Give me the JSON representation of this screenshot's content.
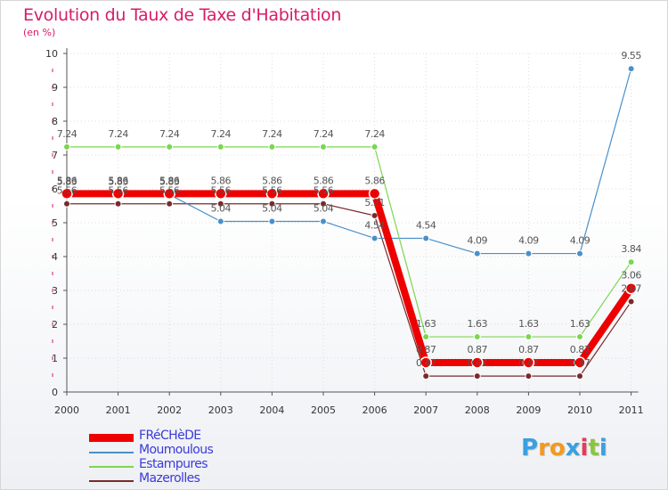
{
  "header": {
    "title": "Evolution du Taux de Taxe d'Habitation",
    "subtitle": "(en %)"
  },
  "logo": {
    "letters": [
      "P",
      "r",
      "o",
      "x",
      "i",
      "t",
      "i"
    ],
    "colors": [
      "#3aa0e0",
      "#f29a1e",
      "#f29a1e",
      "#3aa0e0",
      "#e83a5a",
      "#8ac53e",
      "#3aa0e0"
    ]
  },
  "colors": {
    "title": "#d81b6a",
    "axis": "#555555",
    "grid_dots": "#d81b6a",
    "legend_text": "#3b3bd8"
  },
  "chart_data": {
    "type": "line",
    "title": "Evolution du Taux de Taxe d'Habitation",
    "ylabel": "(en %)",
    "x": [
      "2000",
      "2001",
      "2002",
      "2003",
      "2004",
      "2005",
      "2006",
      "2007",
      "2008",
      "2009",
      "2010",
      "2011"
    ],
    "ylim": [
      0,
      10
    ],
    "yticks": [
      "0",
      "1",
      "2",
      "3",
      "4",
      "5",
      "6",
      "7",
      "8",
      "9",
      "10"
    ],
    "legend_position": "bottom-left",
    "series": [
      {
        "name": "FRéCHèDE",
        "color": "#ee0000",
        "values": [
          5.86,
          5.86,
          5.86,
          5.86,
          5.86,
          5.86,
          5.86,
          0.87,
          0.87,
          0.87,
          0.87,
          3.06
        ],
        "labels": [
          "5.86",
          "5.86",
          "5.86",
          "5.86",
          "5.86",
          "5.86",
          "5.86",
          "0.87",
          "0.87",
          "0.87",
          "0.87",
          "3.06"
        ]
      },
      {
        "name": "Moumoulous",
        "color": "#4a90c8",
        "values": [
          5.83,
          5.83,
          5.83,
          5.04,
          5.04,
          5.04,
          4.54,
          4.54,
          4.09,
          4.09,
          4.09,
          9.55
        ],
        "labels": [
          "5.83",
          "5.83",
          "5.83",
          "5.04",
          "5.04",
          "5.04",
          "4.54",
          "4.54",
          "4.09",
          "4.09",
          "4.09",
          "9.55"
        ]
      },
      {
        "name": "Estampures",
        "color": "#7cd650",
        "values": [
          7.24,
          7.24,
          7.24,
          7.24,
          7.24,
          7.24,
          7.24,
          1.63,
          1.63,
          1.63,
          1.63,
          3.84
        ],
        "labels": [
          "7.24",
          "7.24",
          "7.24",
          "7.24",
          "7.24",
          "7.24",
          "7.24",
          "1.63",
          "1.63",
          "1.63",
          "1.63",
          "3.84"
        ]
      },
      {
        "name": "Mazerolles",
        "color": "#7a2a2a",
        "values": [
          5.56,
          5.56,
          5.56,
          5.56,
          5.56,
          5.56,
          5.21,
          0.47,
          0.47,
          0.47,
          0.47,
          2.67
        ],
        "labels": [
          "5.56",
          "5.56",
          "5.56",
          "5.56",
          "5.56",
          "5.56",
          "5.21",
          "0.47",
          "0.47",
          "0.47",
          "0.47",
          "2.67"
        ]
      }
    ]
  }
}
